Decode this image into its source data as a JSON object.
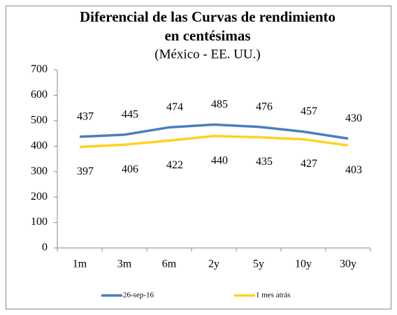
{
  "chart_data": {
    "type": "line",
    "title_lines": [
      "Diferencial de las Curvas de rendimiento",
      "en centésimas"
    ],
    "subtitle": "(México - EE. UU.)",
    "categories": [
      "1m",
      "3m",
      "6m",
      "2y",
      "5y",
      "10y",
      "30y"
    ],
    "series": [
      {
        "name": "26-sep-16",
        "color": "#4a7ebb",
        "values": [
          437,
          445,
          474,
          485,
          476,
          457,
          430
        ]
      },
      {
        "name": "1 mes atrás",
        "color": "#ffd21f",
        "values": [
          397,
          406,
          422,
          440,
          435,
          427,
          403
        ]
      }
    ],
    "ylim": [
      0,
      700
    ],
    "yticks": [
      0,
      100,
      200,
      300,
      400,
      500,
      600,
      700
    ],
    "grid": false
  }
}
